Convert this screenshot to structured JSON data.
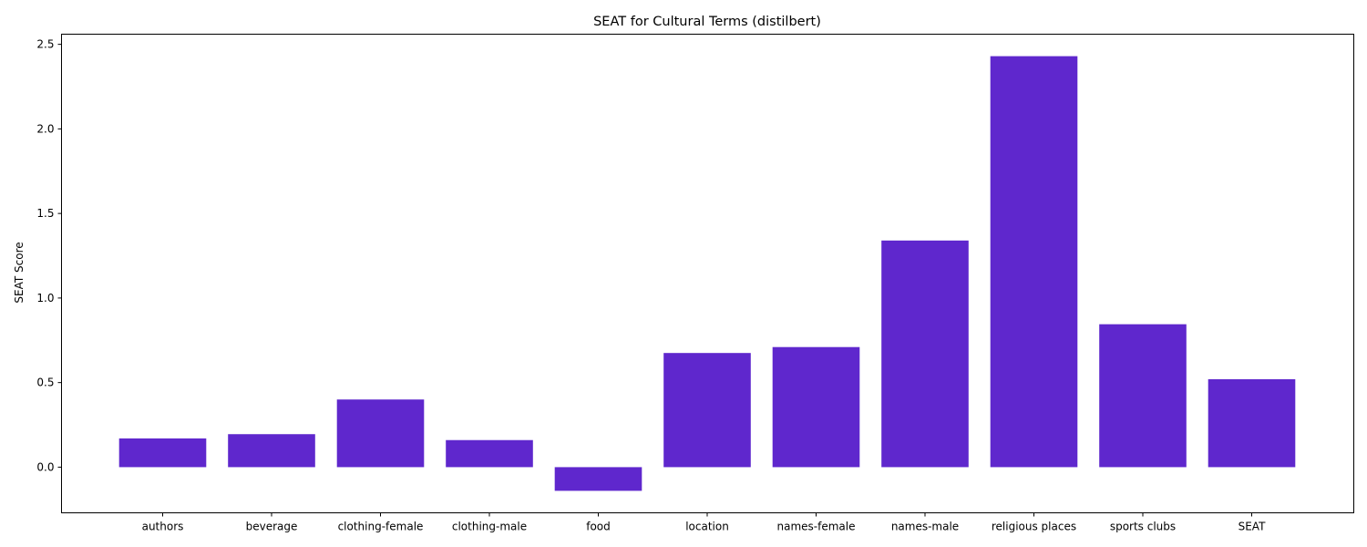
{
  "chart_data": {
    "type": "bar",
    "title": "SEAT for Cultural Terms (distilbert)",
    "xlabel": "",
    "ylabel": "SEAT Score",
    "categories": [
      "authors",
      "beverage",
      "clothing-female",
      "clothing-male",
      "food",
      "location",
      "names-female",
      "names-male",
      "religious places",
      "sports clubs",
      "SEAT"
    ],
    "values": [
      0.17,
      0.195,
      0.4,
      0.16,
      -0.14,
      0.675,
      0.71,
      1.34,
      2.43,
      0.845,
      0.52
    ],
    "ylim": [
      -0.27,
      2.56
    ],
    "yticks": [
      0.0,
      0.5,
      1.0,
      1.5,
      2.0,
      2.5
    ],
    "ytick_labels": [
      "0.0",
      "0.5",
      "1.0",
      "1.5",
      "2.0",
      "2.5"
    ],
    "bar_color": "#5f27cd",
    "grid": false,
    "legend": "none"
  }
}
